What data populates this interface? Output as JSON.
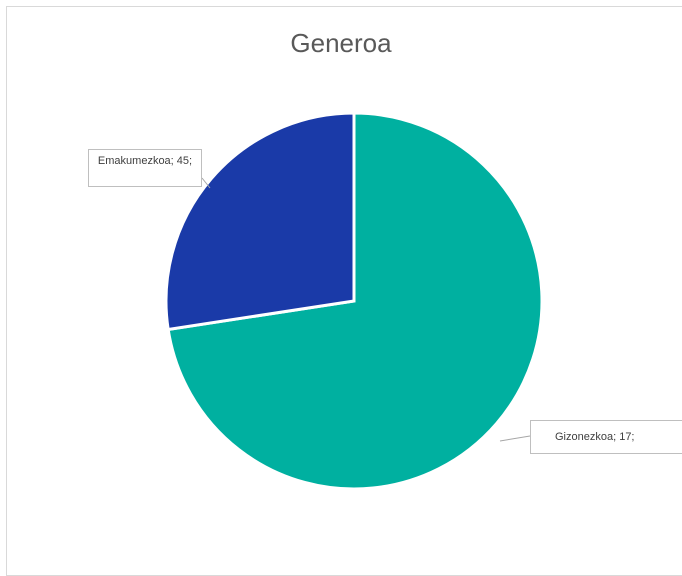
{
  "chart_data": {
    "type": "pie",
    "title": "Generoa",
    "slices": [
      {
        "label": "Emakumezkoa",
        "value": 45,
        "percent": "73%",
        "color": "#00b0a0"
      },
      {
        "label": "Gizonezkoa",
        "value": 17,
        "percent": "27%",
        "color": "#1a3aa8"
      }
    ],
    "data_labels": [
      {
        "line1": "Gizonezkoa; 17;",
        "line2": "27%"
      },
      {
        "line1": "Emakumezkoa; 45;",
        "line2": ""
      }
    ]
  }
}
